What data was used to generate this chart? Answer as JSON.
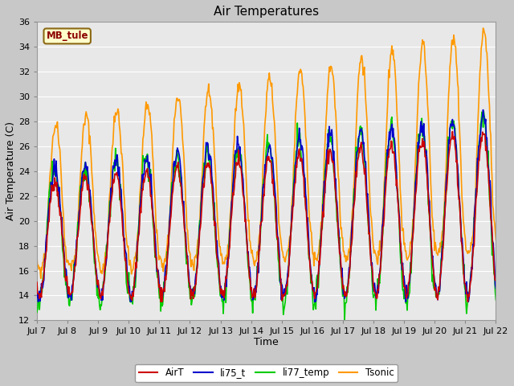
{
  "title": "Air Temperatures",
  "xlabel": "Time",
  "ylabel": "Air Temperature (C)",
  "ylim": [
    12,
    36
  ],
  "yticks": [
    12,
    14,
    16,
    18,
    20,
    22,
    24,
    26,
    28,
    30,
    32,
    34,
    36
  ],
  "x_labels": [
    "Jul 7",
    "Jul 8",
    "Jul 9",
    "Jul 10",
    "Jul 11",
    "Jul 12",
    "Jul 13",
    "Jul 14",
    "Jul 15",
    "Jul 16",
    "Jul 17",
    "Jul 18",
    "Jul 19",
    "Jul 20",
    "Jul 21",
    "Jul 22"
  ],
  "watermark": "MB_tule",
  "watermark_color": "#8B0000",
  "watermark_bg": "#FFFFCC",
  "watermark_border": "#8B6914",
  "colors": {
    "AirT": "#CC0000",
    "li75_t": "#0000CC",
    "li77_temp": "#00CC00",
    "Tsonic": "#FF9900"
  },
  "bg_color": "#E8E8E8",
  "grid_color": "#FFFFFF"
}
